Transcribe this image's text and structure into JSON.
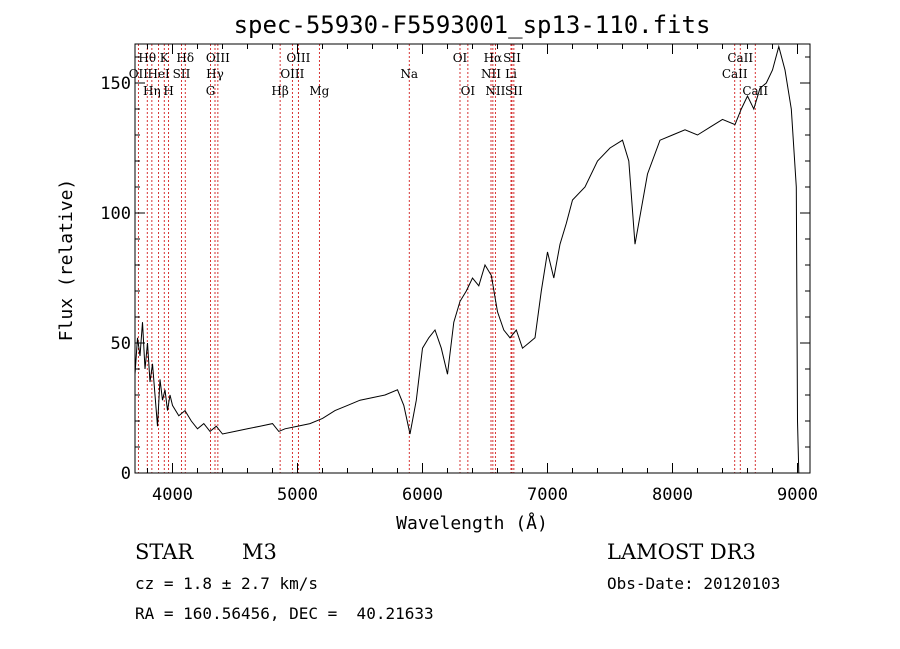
{
  "chart_data": {
    "type": "line",
    "title": "spec-55930-F5593001_sp13-110.fits",
    "xlabel": "Wavelength (Å)",
    "ylabel": "Flux (relative)",
    "xlim": [
      3700,
      9100
    ],
    "ylim": [
      0,
      165
    ],
    "xticks": [
      4000,
      5000,
      6000,
      7000,
      8000,
      9000
    ],
    "yticks": [
      0,
      50,
      100,
      150
    ],
    "series": [
      {
        "name": "flux",
        "x": [
          3700,
          3720,
          3740,
          3760,
          3780,
          3800,
          3820,
          3840,
          3860,
          3880,
          3900,
          3920,
          3940,
          3960,
          3980,
          4000,
          4050,
          4100,
          4150,
          4200,
          4250,
          4300,
          4350,
          4400,
          4500,
          4600,
          4700,
          4800,
          4850,
          4900,
          5000,
          5100,
          5200,
          5300,
          5400,
          5500,
          5600,
          5700,
          5800,
          5850,
          5900,
          5950,
          6000,
          6050,
          6100,
          6150,
          6200,
          6250,
          6300,
          6350,
          6400,
          6450,
          6500,
          6550,
          6600,
          6650,
          6700,
          6750,
          6800,
          6850,
          6900,
          6950,
          7000,
          7050,
          7100,
          7150,
          7200,
          7300,
          7400,
          7500,
          7600,
          7650,
          7700,
          7800,
          7900,
          8000,
          8100,
          8200,
          8300,
          8400,
          8500,
          8550,
          8600,
          8650,
          8700,
          8750,
          8800,
          8850,
          8900,
          8950,
          8990,
          9000,
          9010
        ],
        "y": [
          38,
          52,
          45,
          58,
          40,
          50,
          35,
          42,
          30,
          18,
          36,
          28,
          32,
          24,
          30,
          26,
          22,
          24,
          20,
          17,
          19,
          16,
          18,
          15,
          16,
          17,
          18,
          19,
          16,
          17,
          18,
          19,
          21,
          24,
          26,
          28,
          29,
          30,
          32,
          26,
          15,
          28,
          48,
          52,
          55,
          48,
          38,
          58,
          66,
          70,
          75,
          72,
          80,
          76,
          62,
          55,
          52,
          55,
          48,
          50,
          52,
          70,
          85,
          75,
          88,
          96,
          105,
          110,
          120,
          125,
          128,
          120,
          88,
          115,
          128,
          130,
          132,
          130,
          133,
          136,
          134,
          140,
          145,
          140,
          148,
          150,
          155,
          164,
          155,
          140,
          110,
          20,
          0
        ]
      }
    ],
    "spectral_lines": [
      {
        "label": "Hθ",
        "x": 3798,
        "row": 1
      },
      {
        "label": "OII",
        "x": 3727,
        "row": 2
      },
      {
        "label": "Hη",
        "x": 3835,
        "row": 3
      },
      {
        "label": "HeI",
        "x": 3889,
        "row": 2
      },
      {
        "label": "K",
        "x": 3934,
        "row": 1
      },
      {
        "label": "H",
        "x": 3969,
        "row": 3
      },
      {
        "label": "SII",
        "x": 4072,
        "row": 2
      },
      {
        "label": "Hδ",
        "x": 4102,
        "row": 1
      },
      {
        "label": "G",
        "x": 4304,
        "row": 3
      },
      {
        "label": "Hγ",
        "x": 4340,
        "row": 2
      },
      {
        "label": "OIII",
        "x": 4363,
        "row": 1
      },
      {
        "label": "Hβ",
        "x": 4861,
        "row": 3
      },
      {
        "label": "OIII",
        "x": 4959,
        "row": 2
      },
      {
        "label": "OIII",
        "x": 5007,
        "row": 1
      },
      {
        "label": "Mg",
        "x": 5175,
        "row": 3
      },
      {
        "label": "Na",
        "x": 5894,
        "row": 2
      },
      {
        "label": "OI",
        "x": 6300,
        "row": 1
      },
      {
        "label": "OI",
        "x": 6363,
        "row": 3
      },
      {
        "label": "NII",
        "x": 6548,
        "row": 2
      },
      {
        "label": "Hα",
        "x": 6563,
        "row": 1
      },
      {
        "label": "NII",
        "x": 6583,
        "row": 3
      },
      {
        "label": "SII",
        "x": 6716,
        "row": 1
      },
      {
        "label": "Li",
        "x": 6708,
        "row": 2
      },
      {
        "label": "SII",
        "x": 6731,
        "row": 3
      },
      {
        "label": "CaII",
        "x": 8498,
        "row": 2
      },
      {
        "label": "CaII",
        "x": 8542,
        "row": 1
      },
      {
        "label": "CaII",
        "x": 8662,
        "row": 3
      }
    ]
  },
  "info": {
    "object_class": "STAR",
    "subclass": "M3",
    "survey": "LAMOST DR3",
    "cz": "cz = 1.8 ± 2.7 km/s",
    "obs_date": "Obs-Date: 20120103",
    "coords": "RA = 160.56456, DEC =  40.21633"
  },
  "colors": {
    "line": "#000000",
    "marker": "#cc0000"
  }
}
